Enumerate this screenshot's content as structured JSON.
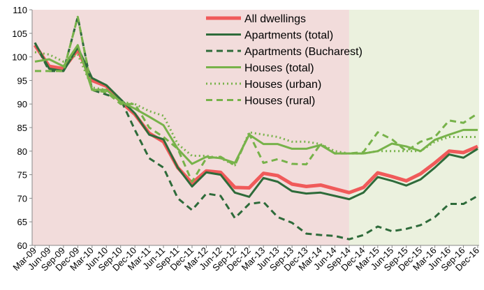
{
  "chart_data": {
    "type": "line",
    "categories": [
      "Mar-09",
      "Jun-09",
      "Sep-09",
      "Dec-09",
      "Mar-10",
      "Jun-10",
      "Sep-10",
      "Dec-10",
      "Mar-11",
      "Jun-11",
      "Sep-11",
      "Dec-11",
      "Mar-12",
      "Jun-12",
      "Sep-12",
      "Dec-12",
      "Mar-13",
      "Jun-13",
      "Sep-13",
      "Dec-13",
      "Mar-14",
      "Jun-14",
      "Sep-14",
      "Dec-14",
      "Mar-15",
      "Jun-15",
      "Sep-15",
      "Dec-15",
      "Mar-16",
      "Jun-16",
      "Sep-16",
      "Dec-16"
    ],
    "series": [
      {
        "name": "All dwellings",
        "color": "#f05a5a",
        "dash": "solid",
        "width": 5,
        "values": [
          102.5,
          98,
          97.5,
          101.5,
          95,
          93.8,
          90.5,
          87.8,
          83.8,
          82,
          76.5,
          73.2,
          75.8,
          75.5,
          72.3,
          72.2,
          75.3,
          74.8,
          73,
          72.5,
          72.8,
          72,
          71.2,
          72.3,
          75.4,
          74.6,
          73.7,
          75.2,
          77.5,
          80,
          79.7,
          81
        ]
      },
      {
        "name": "Apartments (total)",
        "color": "#2e6b3a",
        "dash": "solid",
        "width": 3,
        "values": [
          103,
          97.5,
          97,
          102,
          95.5,
          94,
          91,
          88,
          83.5,
          82.5,
          76.5,
          72.5,
          75.5,
          75,
          71.2,
          70.3,
          74.3,
          73.5,
          71.5,
          71,
          71.2,
          70.5,
          69.8,
          71.2,
          74.5,
          73.7,
          72.7,
          74,
          76.5,
          79.3,
          78.6,
          80.5
        ]
      },
      {
        "name": "Apartments (Bucharest)",
        "color": "#2e6b3a",
        "dash": "dashed",
        "width": 3,
        "values": [
          103,
          97,
          97,
          108.5,
          93,
          92,
          91,
          84.5,
          78.5,
          76.5,
          70,
          67.5,
          71,
          70.5,
          65.8,
          68.8,
          69.2,
          66,
          64.8,
          62.5,
          62.2,
          62,
          61.3,
          62.2,
          64,
          63,
          63.5,
          64.3,
          66,
          68.8,
          68.8,
          70.5
        ]
      },
      {
        "name": "Houses (total)",
        "color": "#77b24a",
        "dash": "solid",
        "width": 3,
        "values": [
          99,
          99.5,
          98,
          102.5,
          93,
          93,
          90.5,
          89,
          87.3,
          85.5,
          80.5,
          77.3,
          78.8,
          78.5,
          77.5,
          83.5,
          81.5,
          81.5,
          80.5,
          80.5,
          81.3,
          79.5,
          79.5,
          79.5,
          80,
          81.6,
          81,
          80,
          82.4,
          83.5,
          84.5,
          84.5
        ]
      },
      {
        "name": "Houses (urban)",
        "color": "#77b24a",
        "dash": "dotted",
        "width": 3,
        "values": [
          101,
          100.5,
          99,
          100.5,
          93.5,
          93,
          90.5,
          90,
          88.5,
          87.5,
          81.5,
          79,
          79,
          78.5,
          77,
          84,
          83.5,
          83,
          82,
          82,
          81.5,
          80,
          79.5,
          79.5,
          80,
          80,
          80,
          80,
          82,
          83,
          83,
          83
        ]
      },
      {
        "name": "Houses (rural)",
        "color": "#77b24a",
        "dash": "dashed",
        "width": 3,
        "values": [
          97,
          97,
          97,
          108.5,
          93,
          92.5,
          90,
          90,
          85,
          83,
          80.5,
          73.5,
          78.5,
          78.8,
          77,
          83.7,
          77.5,
          78.3,
          77.3,
          77.2,
          81.5,
          79.5,
          79.5,
          79.8,
          84,
          82.5,
          80,
          82,
          83,
          86.5,
          86,
          88
        ]
      }
    ],
    "ylim": [
      60,
      110
    ],
    "yticks": [
      60,
      65,
      70,
      75,
      80,
      85,
      90,
      95,
      100,
      105,
      110
    ],
    "shading": [
      {
        "from": "Mar-09",
        "to": "Sep-14",
        "color": "#f2dcdb"
      },
      {
        "from": "Sep-14",
        "to": "Dec-16",
        "color": "#ebf1de"
      }
    ]
  }
}
